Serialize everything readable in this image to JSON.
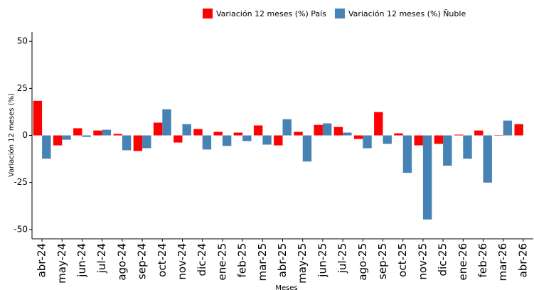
{
  "chart_data": {
    "type": "bar",
    "x_label": "Meses",
    "y_label": "Variación 12 meses (%)",
    "categories": [
      "abr-24",
      "may-24",
      "jun-24",
      "jul-24",
      "ago-24",
      "sep-24",
      "oct-24",
      "nov-24",
      "dic-24",
      "ene-25",
      "feb-25",
      "mar-25",
      "abr-25",
      "may-25",
      "jun-25",
      "jul-25",
      "ago-25",
      "sep-25",
      "oct-25",
      "nov-25",
      "dic-25",
      "ene-26",
      "feb-26",
      "mar-26",
      "abr-26"
    ],
    "series": [
      {
        "name": "Variación 12 meses (%) País",
        "color": "#ff0000",
        "values": [
          18.4,
          -5.3,
          3.8,
          2.6,
          0.8,
          -8.3,
          6.8,
          -3.8,
          3.4,
          1.9,
          1.5,
          5.3,
          -5.3,
          1.9,
          5.6,
          4.5,
          -1.9,
          12.4,
          1.1,
          -5.3,
          -4.5,
          0.4,
          2.6,
          -0.2,
          6.0
        ]
      },
      {
        "name": "Variación 12 meses (%) Ñuble",
        "color": "#4682b4",
        "values": [
          -12.4,
          -2.3,
          -0.8,
          3.0,
          -7.9,
          -6.8,
          13.9,
          6.0,
          -7.5,
          -5.6,
          -3.0,
          -4.9,
          8.6,
          -13.9,
          6.4,
          1.5,
          -6.8,
          -4.5,
          -19.9,
          -44.7,
          -16.1,
          -12.4,
          -25.1,
          7.9,
          null
        ]
      }
    ],
    "ylim": [
      -55,
      55
    ],
    "yticks": [
      -50,
      -25,
      0,
      25,
      50
    ],
    "legend": "top"
  }
}
